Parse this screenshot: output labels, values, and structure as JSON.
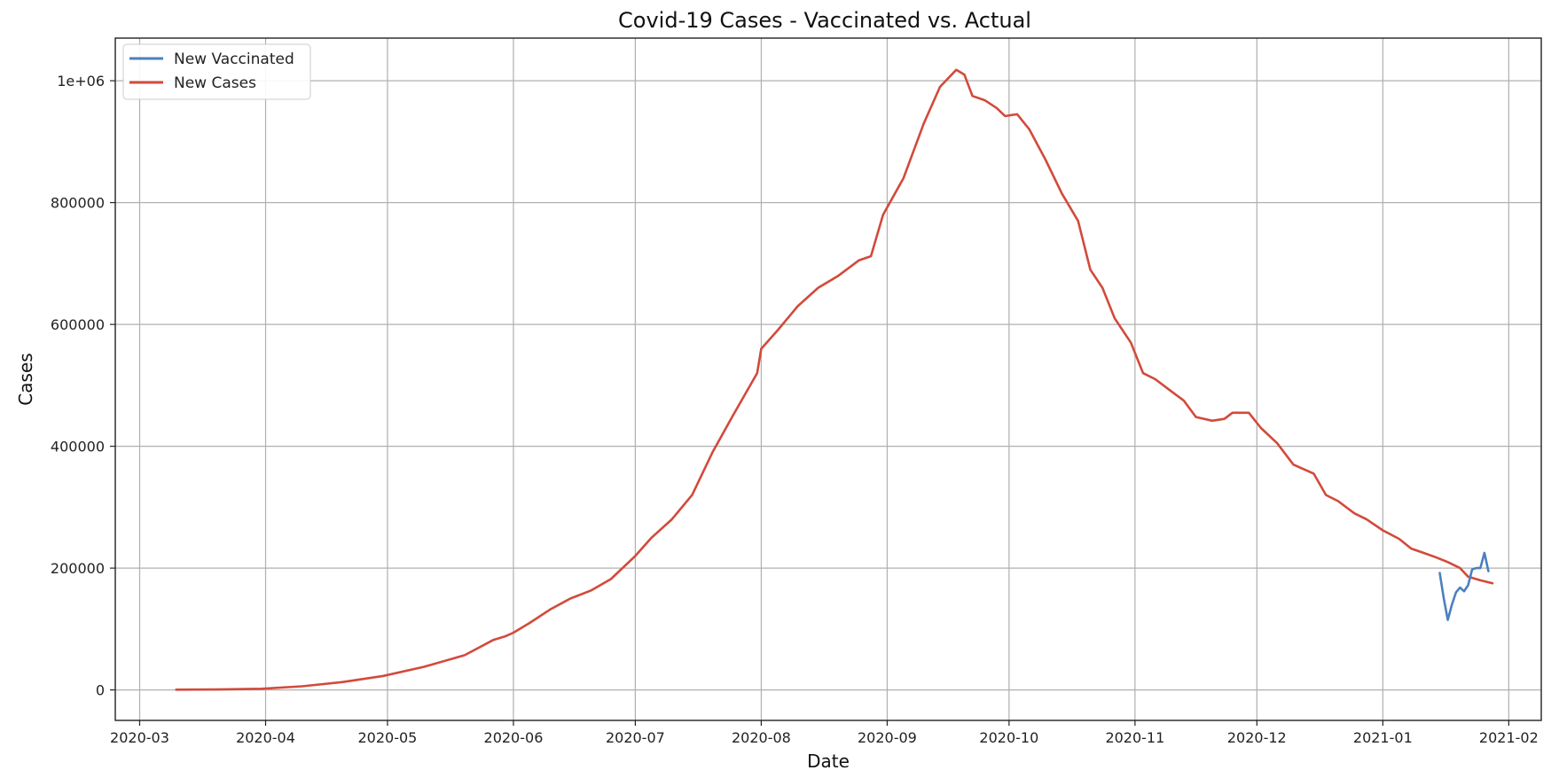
{
  "chart_data": {
    "type": "line",
    "title": "Covid-19 Cases - Vaccinated vs. Actual",
    "xlabel": "Date",
    "ylabel": "Cases",
    "x_range": [
      "2020-02-24",
      "2021-02-09"
    ],
    "ylim": [
      -50000,
      1070000
    ],
    "x_ticks": [
      "2020-03-01",
      "2020-04-01",
      "2020-05-01",
      "2020-06-01",
      "2020-07-01",
      "2020-08-01",
      "2020-09-01",
      "2020-10-01",
      "2020-11-01",
      "2020-12-01",
      "2021-01-01",
      "2021-02-01"
    ],
    "x_tick_labels": [
      "2020-03",
      "2020-04",
      "2020-05",
      "2020-06",
      "2020-07",
      "2020-08",
      "2020-09",
      "2020-10",
      "2020-11",
      "2020-12",
      "2021-01",
      "2021-02"
    ],
    "y_ticks": [
      0,
      200000,
      400000,
      600000,
      800000,
      1000000
    ],
    "y_tick_labels": [
      "0",
      "200000",
      "400000",
      "600000",
      "800000",
      "1e+06"
    ],
    "grid": true,
    "legend_position": "top-left",
    "series": [
      {
        "name": "New Vaccinated",
        "color": "#4c7fbf",
        "points": [
          [
            "2021-01-15",
            192000
          ],
          [
            "2021-01-16",
            150000
          ],
          [
            "2021-01-17",
            115000
          ],
          [
            "2021-01-18",
            140000
          ],
          [
            "2021-01-19",
            160000
          ],
          [
            "2021-01-20",
            168000
          ],
          [
            "2021-01-21",
            162000
          ],
          [
            "2021-01-22",
            172000
          ],
          [
            "2021-01-23",
            198000
          ],
          [
            "2021-01-24",
            200000
          ],
          [
            "2021-01-25",
            200000
          ],
          [
            "2021-01-26",
            225000
          ],
          [
            "2021-01-27",
            195000
          ]
        ]
      },
      {
        "name": "New Cases",
        "color": "#d24a3b",
        "points": [
          [
            "2020-03-10",
            500
          ],
          [
            "2020-03-20",
            800
          ],
          [
            "2020-03-31",
            2000
          ],
          [
            "2020-04-10",
            6000
          ],
          [
            "2020-04-20",
            13000
          ],
          [
            "2020-04-30",
            23000
          ],
          [
            "2020-05-10",
            38000
          ],
          [
            "2020-05-20",
            57000
          ],
          [
            "2020-05-27",
            82000
          ],
          [
            "2020-05-30",
            88000
          ],
          [
            "2020-06-01",
            94000
          ],
          [
            "2020-06-05",
            110000
          ],
          [
            "2020-06-10",
            132000
          ],
          [
            "2020-06-15",
            150000
          ],
          [
            "2020-06-20",
            163000
          ],
          [
            "2020-06-25",
            182000
          ],
          [
            "2020-07-01",
            220000
          ],
          [
            "2020-07-05",
            250000
          ],
          [
            "2020-07-10",
            280000
          ],
          [
            "2020-07-15",
            320000
          ],
          [
            "2020-07-20",
            390000
          ],
          [
            "2020-07-25",
            450000
          ],
          [
            "2020-07-31",
            520000
          ],
          [
            "2020-08-01",
            560000
          ],
          [
            "2020-08-05",
            590000
          ],
          [
            "2020-08-10",
            630000
          ],
          [
            "2020-08-15",
            660000
          ],
          [
            "2020-08-20",
            680000
          ],
          [
            "2020-08-25",
            705000
          ],
          [
            "2020-08-28",
            712000
          ],
          [
            "2020-08-31",
            780000
          ],
          [
            "2020-09-05",
            840000
          ],
          [
            "2020-09-10",
            930000
          ],
          [
            "2020-09-14",
            990000
          ],
          [
            "2020-09-18",
            1018000
          ],
          [
            "2020-09-20",
            1010000
          ],
          [
            "2020-09-22",
            975000
          ],
          [
            "2020-09-25",
            968000
          ],
          [
            "2020-09-28",
            955000
          ],
          [
            "2020-09-30",
            942000
          ],
          [
            "2020-10-03",
            945000
          ],
          [
            "2020-10-06",
            920000
          ],
          [
            "2020-10-10",
            870000
          ],
          [
            "2020-10-14",
            815000
          ],
          [
            "2020-10-18",
            770000
          ],
          [
            "2020-10-21",
            690000
          ],
          [
            "2020-10-24",
            660000
          ],
          [
            "2020-10-27",
            610000
          ],
          [
            "2020-10-31",
            570000
          ],
          [
            "2020-11-03",
            520000
          ],
          [
            "2020-11-06",
            510000
          ],
          [
            "2020-11-10",
            490000
          ],
          [
            "2020-11-13",
            475000
          ],
          [
            "2020-11-16",
            448000
          ],
          [
            "2020-11-20",
            442000
          ],
          [
            "2020-11-23",
            445000
          ],
          [
            "2020-11-25",
            455000
          ],
          [
            "2020-11-29",
            455000
          ],
          [
            "2020-12-02",
            430000
          ],
          [
            "2020-12-06",
            405000
          ],
          [
            "2020-12-10",
            370000
          ],
          [
            "2020-12-15",
            355000
          ],
          [
            "2020-12-18",
            320000
          ],
          [
            "2020-12-21",
            310000
          ],
          [
            "2020-12-25",
            290000
          ],
          [
            "2020-12-28",
            280000
          ],
          [
            "2021-01-01",
            262000
          ],
          [
            "2021-01-05",
            248000
          ],
          [
            "2021-01-08",
            232000
          ],
          [
            "2021-01-11",
            225000
          ],
          [
            "2021-01-14",
            218000
          ],
          [
            "2021-01-17",
            210000
          ],
          [
            "2021-01-20",
            200000
          ],
          [
            "2021-01-22",
            186000
          ],
          [
            "2021-01-25",
            180000
          ],
          [
            "2021-01-28",
            175000
          ]
        ]
      }
    ]
  }
}
